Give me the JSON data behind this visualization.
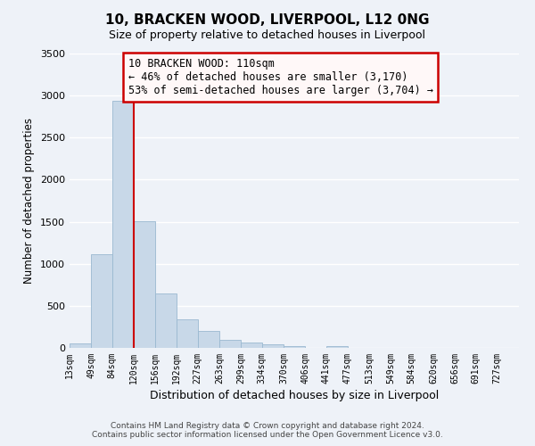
{
  "title": "10, BRACKEN WOOD, LIVERPOOL, L12 0NG",
  "subtitle": "Size of property relative to detached houses in Liverpool",
  "xlabel": "Distribution of detached houses by size in Liverpool",
  "ylabel": "Number of detached properties",
  "bin_labels": [
    "13sqm",
    "49sqm",
    "84sqm",
    "120sqm",
    "156sqm",
    "192sqm",
    "227sqm",
    "263sqm",
    "299sqm",
    "334sqm",
    "370sqm",
    "406sqm",
    "441sqm",
    "477sqm",
    "513sqm",
    "549sqm",
    "584sqm",
    "620sqm",
    "656sqm",
    "691sqm",
    "727sqm"
  ],
  "bar_values": [
    50,
    1110,
    2940,
    1510,
    645,
    340,
    205,
    100,
    65,
    40,
    20,
    0,
    18,
    0,
    0,
    0,
    0,
    0,
    0,
    0,
    0
  ],
  "bar_color": "#c8d8e8",
  "bar_edgecolor": "#9ab8d0",
  "bg_color": "#eef2f8",
  "grid_color": "#ffffff",
  "vline_x_bin_index": 2,
  "vline_color": "#cc0000",
  "annotation_title": "10 BRACKEN WOOD: 110sqm",
  "annotation_line1": "← 46% of detached houses are smaller (3,170)",
  "annotation_line2": "53% of semi-detached houses are larger (3,704) →",
  "annotation_box_facecolor": "#fff8f8",
  "annotation_box_edgecolor": "#cc0000",
  "ylim": [
    0,
    3500
  ],
  "bin_edges": [
    13,
    49,
    84,
    120,
    156,
    192,
    227,
    263,
    299,
    334,
    370,
    406,
    441,
    477,
    513,
    549,
    584,
    620,
    656,
    691,
    727,
    763
  ],
  "footer_line1": "Contains HM Land Registry data © Crown copyright and database right 2024.",
  "footer_line2": "Contains public sector information licensed under the Open Government Licence v3.0."
}
